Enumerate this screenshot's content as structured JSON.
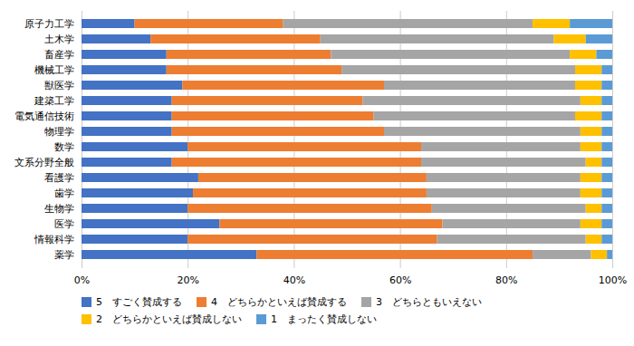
{
  "chart_data": {
    "type": "bar",
    "orientation": "horizontal",
    "stacked": true,
    "categories": [
      "薬学",
      "情報科学",
      "医学",
      "生物学",
      "歯学",
      "看護学",
      "文系分野全般",
      "数学",
      "物理学",
      "電気通信技術",
      "建築工学",
      "獣医学",
      "機械工学",
      "畜産学",
      "土木学",
      "原子力工学"
    ],
    "series": [
      {
        "name": "5　すごく賛成する",
        "color": "#4472C4",
        "values": [
          33,
          20,
          26,
          20,
          21,
          22,
          17,
          20,
          17,
          17,
          17,
          19,
          16,
          16,
          13,
          10
        ]
      },
      {
        "name": "4　どちらかといえば賛成する",
        "color": "#ED7D31",
        "values": [
          52,
          47,
          42,
          46,
          44,
          43,
          47,
          44,
          40,
          38,
          36,
          38,
          33,
          31,
          32,
          28
        ]
      },
      {
        "name": "3　どちらともいえない",
        "color": "#A5A5A5",
        "values": [
          11,
          28,
          26,
          29,
          29,
          29,
          31,
          30,
          37,
          38,
          41,
          36,
          44,
          45,
          44,
          47
        ]
      },
      {
        "name": "2　どちらかといえば賛成しない",
        "color": "#FFC000",
        "values": [
          3,
          3,
          4,
          3,
          4,
          4,
          3,
          4,
          4,
          5,
          4,
          5,
          5,
          5,
          6,
          7
        ]
      },
      {
        "name": "1　まったく賛成しない",
        "color": "#5B9BD5",
        "values": [
          1,
          2,
          2,
          2,
          2,
          2,
          2,
          2,
          2,
          2,
          2,
          2,
          2,
          3,
          5,
          8
        ]
      }
    ],
    "xlim": [
      0,
      100
    ],
    "xticks": [
      {
        "value": 0,
        "label": "0%"
      },
      {
        "value": 20,
        "label": "20%"
      },
      {
        "value": 40,
        "label": "40%"
      },
      {
        "value": 60,
        "label": "60%"
      },
      {
        "value": 80,
        "label": "80%"
      },
      {
        "value": 100,
        "label": "100%"
      }
    ],
    "grid": true,
    "legend": "bottom"
  }
}
